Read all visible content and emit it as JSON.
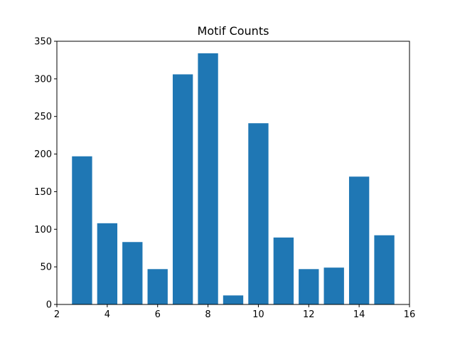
{
  "chart_data": {
    "type": "bar",
    "title": "Motif Counts",
    "xlabel": "",
    "ylabel": "",
    "x": [
      3,
      4,
      5,
      6,
      7,
      8,
      9,
      10,
      11,
      12,
      13,
      14,
      15
    ],
    "values": [
      197,
      108,
      83,
      47,
      306,
      334,
      12,
      241,
      89,
      47,
      49,
      170,
      92
    ],
    "bar_width": 0.8,
    "xlim": [
      2,
      16
    ],
    "ylim": [
      0,
      350
    ],
    "xticks": [
      2,
      4,
      6,
      8,
      10,
      12,
      14,
      16
    ],
    "yticks": [
      0,
      50,
      100,
      150,
      200,
      250,
      300,
      350
    ],
    "grid": false,
    "bar_color": "#1f77b4"
  }
}
